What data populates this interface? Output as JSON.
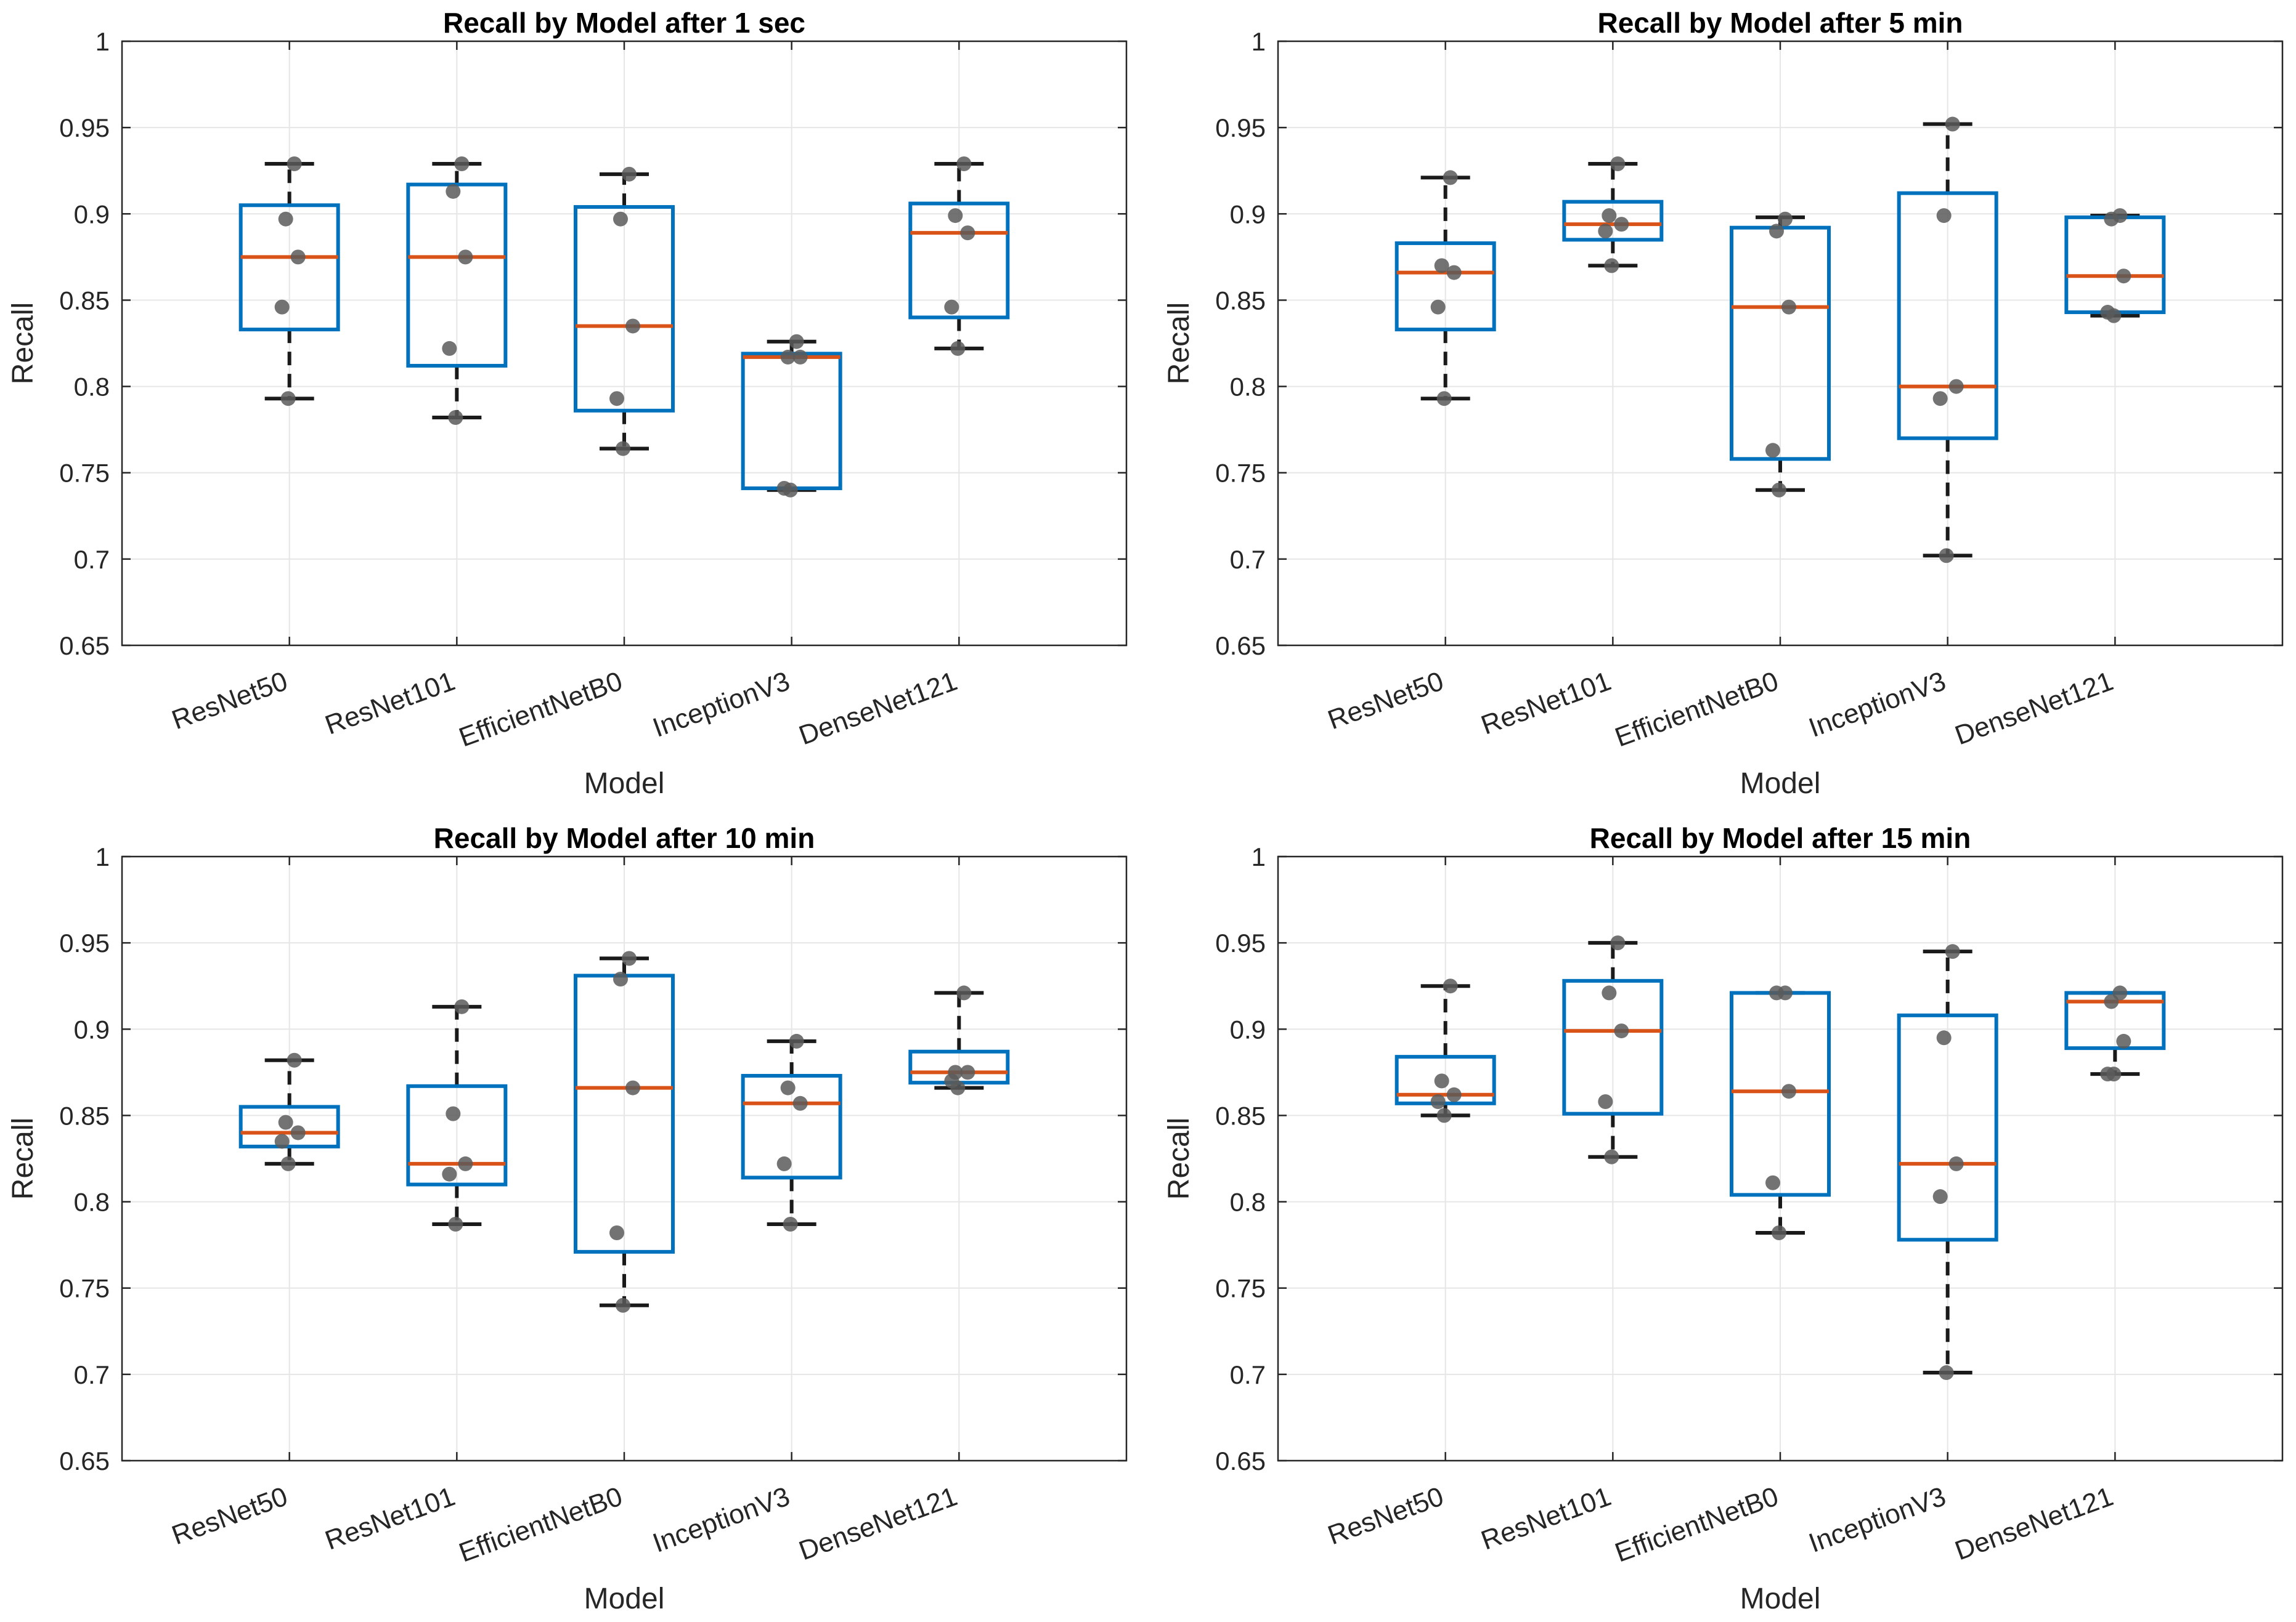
{
  "colors": {
    "box": "#0072BD",
    "median": "#D95319",
    "whisker": "#1a1a1a",
    "point": "#5a5a5a",
    "grid": "#e6e6e6",
    "axis": "#262626",
    "text": "#262626"
  },
  "chart_data": [
    {
      "type": "box",
      "title": "Recall by Model after 1 sec",
      "xlabel": "Model",
      "ylabel": "Recall",
      "ylim": [
        0.65,
        1
      ],
      "yticks": [
        0.65,
        0.7,
        0.75,
        0.8,
        0.85,
        0.9,
        0.95,
        1
      ],
      "ytick_labels": [
        "0.65",
        "0.7",
        "0.75",
        "0.8",
        "0.85",
        "0.9",
        "0.95",
        "1"
      ],
      "grid": true,
      "categories": [
        "ResNet50",
        "ResNet101",
        "EfficientNetB0",
        "InceptionV3",
        "DenseNet121"
      ],
      "boxes": [
        {
          "min": 0.793,
          "q1": 0.833,
          "median": 0.875,
          "q3": 0.905,
          "max": 0.929
        },
        {
          "min": 0.782,
          "q1": 0.812,
          "median": 0.875,
          "q3": 0.917,
          "max": 0.929
        },
        {
          "min": 0.764,
          "q1": 0.786,
          "median": 0.835,
          "q3": 0.904,
          "max": 0.923
        },
        {
          "min": 0.74,
          "q1": 0.741,
          "median": 0.817,
          "q3": 0.819,
          "max": 0.826
        },
        {
          "min": 0.822,
          "q1": 0.84,
          "median": 0.889,
          "q3": 0.906,
          "max": 0.929
        }
      ],
      "points": [
        [
          0.929,
          0.897,
          0.875,
          0.846,
          0.793
        ],
        [
          0.929,
          0.913,
          0.875,
          0.822,
          0.782
        ],
        [
          0.923,
          0.897,
          0.835,
          0.793,
          0.764
        ],
        [
          0.826,
          0.817,
          0.817,
          0.741,
          0.74
        ],
        [
          0.929,
          0.899,
          0.889,
          0.846,
          0.822
        ]
      ]
    },
    {
      "type": "box",
      "title": "Recall by Model after 5 min",
      "xlabel": "Model",
      "ylabel": "Recall",
      "ylim": [
        0.65,
        1
      ],
      "yticks": [
        0.65,
        0.7,
        0.75,
        0.8,
        0.85,
        0.9,
        0.95,
        1
      ],
      "ytick_labels": [
        "0.65",
        "0.7",
        "0.75",
        "0.8",
        "0.85",
        "0.9",
        "0.95",
        "1"
      ],
      "grid": true,
      "categories": [
        "ResNet50",
        "ResNet101",
        "EfficientNetB0",
        "InceptionV3",
        "DenseNet121"
      ],
      "boxes": [
        {
          "min": 0.793,
          "q1": 0.833,
          "median": 0.866,
          "q3": 0.883,
          "max": 0.921
        },
        {
          "min": 0.87,
          "q1": 0.885,
          "median": 0.894,
          "q3": 0.907,
          "max": 0.929
        },
        {
          "min": 0.74,
          "q1": 0.758,
          "median": 0.846,
          "q3": 0.892,
          "max": 0.898
        },
        {
          "min": 0.702,
          "q1": 0.77,
          "median": 0.8,
          "q3": 0.912,
          "max": 0.952
        },
        {
          "min": 0.841,
          "q1": 0.843,
          "median": 0.864,
          "q3": 0.898,
          "max": 0.899
        }
      ],
      "points": [
        [
          0.921,
          0.87,
          0.866,
          0.846,
          0.793
        ],
        [
          0.929,
          0.899,
          0.894,
          0.89,
          0.87
        ],
        [
          0.897,
          0.89,
          0.846,
          0.763,
          0.74
        ],
        [
          0.952,
          0.899,
          0.8,
          0.793,
          0.702
        ],
        [
          0.899,
          0.897,
          0.864,
          0.843,
          0.841
        ]
      ]
    },
    {
      "type": "box",
      "title": "Recall by Model after 10 min",
      "xlabel": "Model",
      "ylabel": "Recall",
      "ylim": [
        0.65,
        1
      ],
      "yticks": [
        0.65,
        0.7,
        0.75,
        0.8,
        0.85,
        0.9,
        0.95,
        1
      ],
      "ytick_labels": [
        "0.65",
        "0.7",
        "0.75",
        "0.8",
        "0.85",
        "0.9",
        "0.95",
        "1"
      ],
      "grid": true,
      "categories": [
        "ResNet50",
        "ResNet101",
        "EfficientNetB0",
        "InceptionV3",
        "DenseNet121"
      ],
      "boxes": [
        {
          "min": 0.822,
          "q1": 0.832,
          "median": 0.84,
          "q3": 0.855,
          "max": 0.882
        },
        {
          "min": 0.787,
          "q1": 0.81,
          "median": 0.822,
          "q3": 0.867,
          "max": 0.913
        },
        {
          "min": 0.74,
          "q1": 0.771,
          "median": 0.866,
          "q3": 0.931,
          "max": 0.941
        },
        {
          "min": 0.787,
          "q1": 0.814,
          "median": 0.857,
          "q3": 0.873,
          "max": 0.893
        },
        {
          "min": 0.866,
          "q1": 0.869,
          "median": 0.875,
          "q3": 0.887,
          "max": 0.921
        }
      ],
      "points": [
        [
          0.882,
          0.846,
          0.84,
          0.835,
          0.822
        ],
        [
          0.913,
          0.851,
          0.822,
          0.816,
          0.787
        ],
        [
          0.941,
          0.929,
          0.866,
          0.782,
          0.74
        ],
        [
          0.893,
          0.866,
          0.857,
          0.822,
          0.787
        ],
        [
          0.921,
          0.875,
          0.875,
          0.87,
          0.866
        ]
      ]
    },
    {
      "type": "box",
      "title": "Recall by Model after 15 min",
      "xlabel": "Model",
      "ylabel": "Recall",
      "ylim": [
        0.65,
        1
      ],
      "yticks": [
        0.65,
        0.7,
        0.75,
        0.8,
        0.85,
        0.9,
        0.95,
        1
      ],
      "ytick_labels": [
        "0.65",
        "0.7",
        "0.75",
        "0.8",
        "0.85",
        "0.9",
        "0.95",
        "1"
      ],
      "grid": true,
      "categories": [
        "ResNet50",
        "ResNet101",
        "EfficientNetB0",
        "InceptionV3",
        "DenseNet121"
      ],
      "boxes": [
        {
          "min": 0.85,
          "q1": 0.857,
          "median": 0.862,
          "q3": 0.884,
          "max": 0.925
        },
        {
          "min": 0.826,
          "q1": 0.851,
          "median": 0.899,
          "q3": 0.928,
          "max": 0.95
        },
        {
          "min": 0.782,
          "q1": 0.804,
          "median": 0.864,
          "q3": 0.921,
          "max": 0.921
        },
        {
          "min": 0.701,
          "q1": 0.778,
          "median": 0.822,
          "q3": 0.908,
          "max": 0.945
        },
        {
          "min": 0.874,
          "q1": 0.889,
          "median": 0.916,
          "q3": 0.921,
          "max": 0.921
        }
      ],
      "points": [
        [
          0.925,
          0.87,
          0.862,
          0.858,
          0.85
        ],
        [
          0.95,
          0.921,
          0.899,
          0.858,
          0.826
        ],
        [
          0.921,
          0.921,
          0.864,
          0.811,
          0.782
        ],
        [
          0.945,
          0.895,
          0.822,
          0.803,
          0.701
        ],
        [
          0.921,
          0.916,
          0.893,
          0.874,
          0.874
        ]
      ]
    }
  ]
}
